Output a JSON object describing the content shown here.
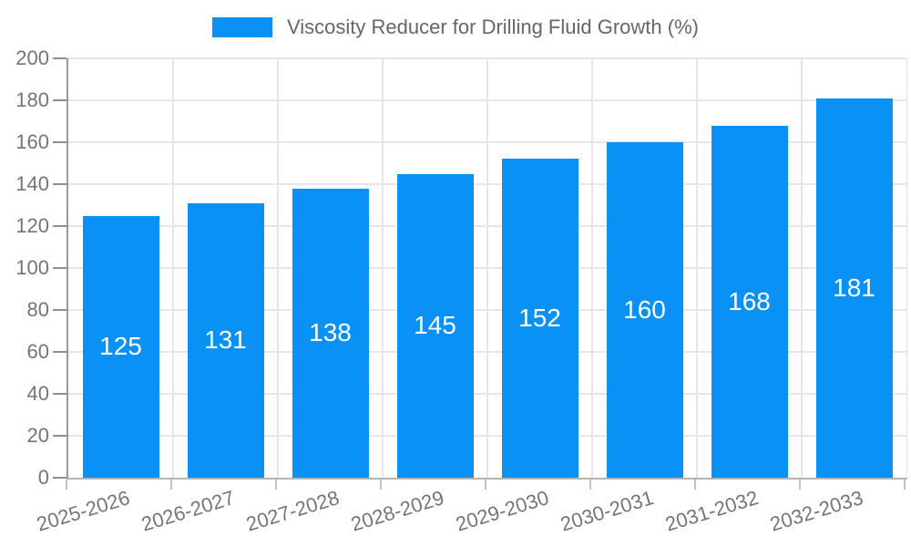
{
  "chart_data": {
    "type": "bar",
    "legend": "Viscosity Reducer for Drilling Fluid Growth (%)",
    "legend_position": "top-center",
    "categories": [
      "2025-2026",
      "2026-2027",
      "2027-2028",
      "2028-2029",
      "2029-2030",
      "2030-2031",
      "2031-2032",
      "2032-2033"
    ],
    "series": [
      {
        "name": "Viscosity Reducer for Drilling Fluid Growth (%)",
        "color": "#0991f5",
        "values": [
          125,
          131,
          138,
          145,
          152,
          160,
          168,
          181
        ]
      }
    ],
    "value_labels": {
      "position": "inside-center",
      "color": "#ffffff"
    },
    "xlabel": "",
    "ylabel": "",
    "ylim": [
      0,
      200
    ],
    "y_ticks": [
      0,
      20,
      40,
      60,
      80,
      100,
      120,
      140,
      160,
      180,
      200
    ],
    "grid": true
  }
}
